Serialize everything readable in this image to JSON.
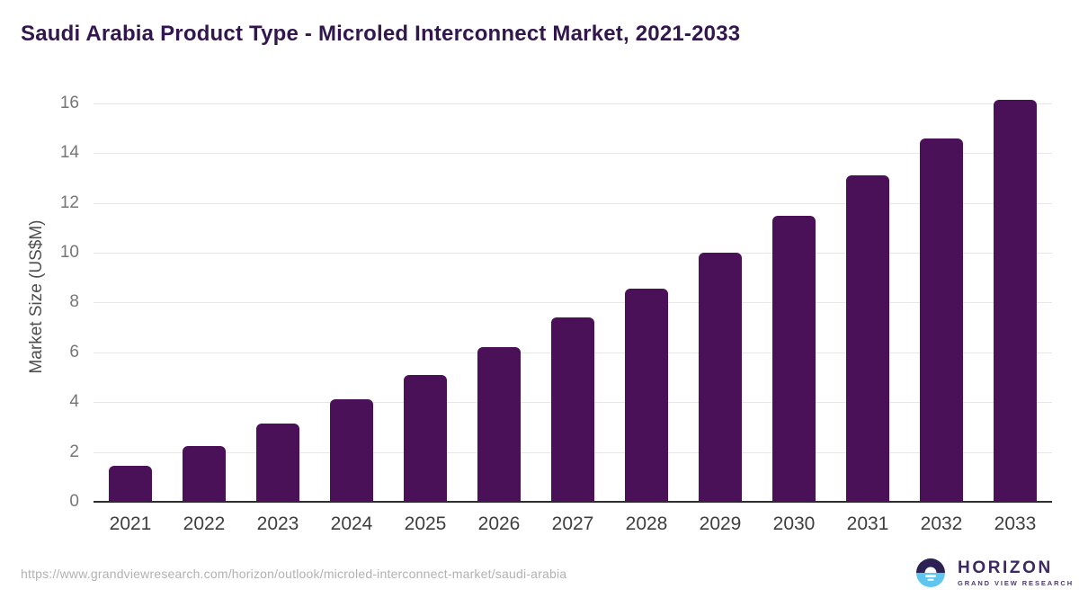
{
  "header": {
    "title": "Saudi Arabia Product Type - Microled Interconnect Market, 2021-2033"
  },
  "chart_data": {
    "type": "bar",
    "title": "Saudi Arabia Product Type - Microled Interconnect Market, 2021-2033",
    "categories": [
      "2021",
      "2022",
      "2023",
      "2024",
      "2025",
      "2026",
      "2027",
      "2028",
      "2029",
      "2030",
      "2031",
      "2032",
      "2033"
    ],
    "values": [
      1.45,
      2.25,
      3.15,
      4.1,
      5.1,
      6.2,
      7.4,
      8.55,
      10.0,
      11.5,
      13.1,
      14.6,
      16.15
    ],
    "xlabel": "",
    "ylabel": "Market Size (US$M)",
    "ylim": [
      0,
      16
    ],
    "yticks": [
      0,
      2,
      4,
      6,
      8,
      10,
      12,
      14,
      16
    ],
    "grid": "horizontal-only",
    "legend": "none",
    "bar_color": "#4a1158"
  },
  "footer": {
    "source_url": "https://www.grandviewresearch.com/horizon/outlook/microled-interconnect-market/saudi-arabia",
    "logo": {
      "brand": "HORIZON",
      "tagline": "GRAND VIEW RESEARCH"
    }
  },
  "colors": {
    "bar": "#4a1158",
    "title_text": "#32174d",
    "axis_line": "#2e2e2e",
    "gridline": "#e7e7e7",
    "logo_dark": "#2b2152",
    "logo_blue": "#5ec5ef"
  }
}
